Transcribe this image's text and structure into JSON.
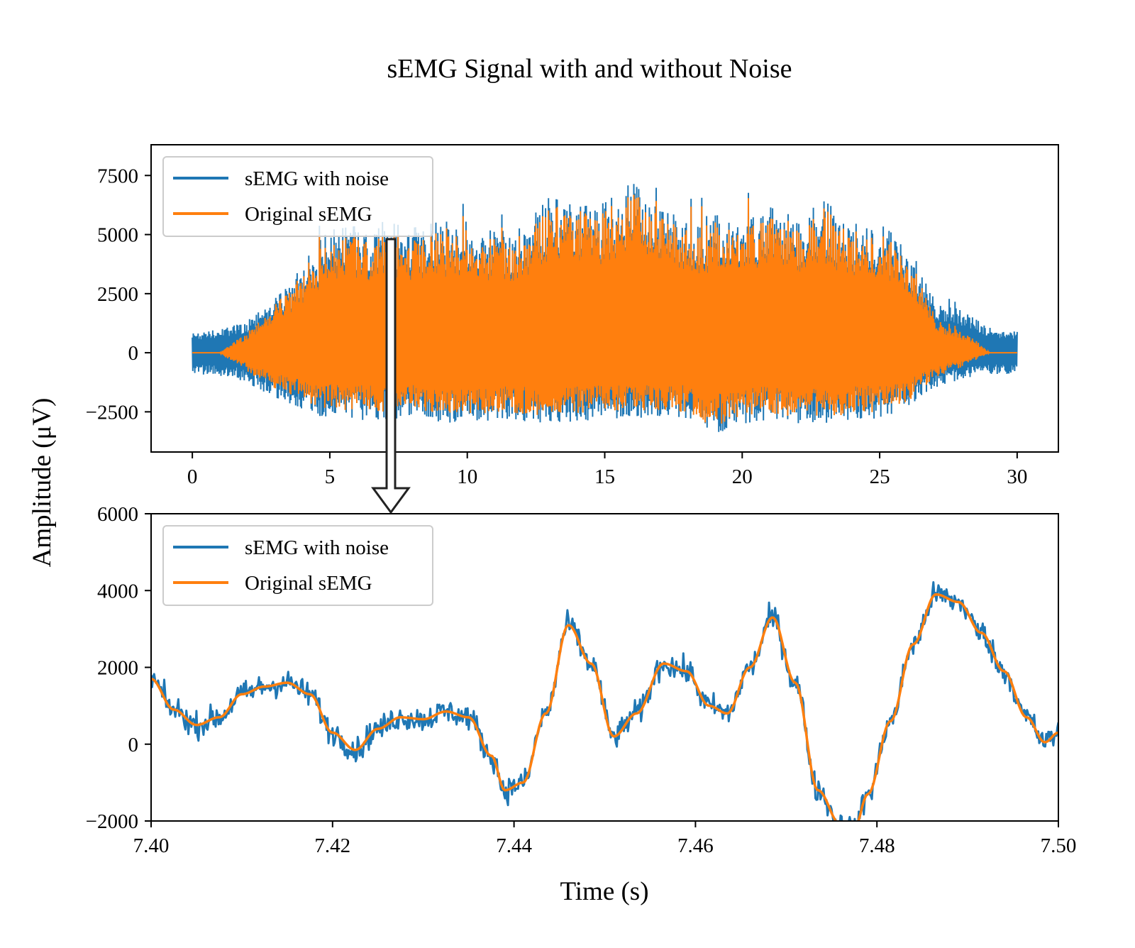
{
  "title": "sEMG Signal with and without Noise",
  "ylabel": "Amplitude (μV)",
  "xlabel": "Time (s)",
  "colors": {
    "noisy": "#1f77b4",
    "original": "#ff7f0e"
  },
  "chart_data": [
    {
      "type": "line",
      "panel": "overview",
      "xlim": [
        -1.5,
        31.5
      ],
      "ylim": [
        -4200,
        8800
      ],
      "xticks": [
        0,
        5,
        10,
        15,
        20,
        25,
        30
      ],
      "yticks": [
        -2500,
        0,
        2500,
        5000,
        7500
      ],
      "xtick_labels": [
        "0",
        "5",
        "10",
        "15",
        "20",
        "25",
        "30"
      ],
      "ytick_labels": [
        "−2500",
        "0",
        "2500",
        "5000",
        "7500"
      ],
      "legend": {
        "position": "upper-left"
      },
      "series": [
        {
          "name": "sEMG with noise",
          "color": "#1f77b4",
          "envelope": {
            "x": [
              0,
              1,
              1.5,
              2,
              2.5,
              3,
              3.5,
              4,
              4.5,
              5,
              6,
              7,
              8,
              9,
              10,
              11,
              12,
              13,
              14,
              15,
              16,
              17,
              18,
              19,
              20,
              21,
              22,
              23,
              24,
              25,
              26,
              26.5,
              27,
              27.5,
              28,
              28.5,
              29,
              30
            ],
            "upper": [
              1000,
              1100,
              1300,
              1500,
              2200,
              2600,
              3200,
              4200,
              5200,
              5900,
              6100,
              6300,
              6000,
              6300,
              6300,
              5800,
              6000,
              7500,
              7000,
              7200,
              8200,
              6800,
              6500,
              6600,
              6700,
              7000,
              6500,
              7300,
              6200,
              6200,
              5200,
              4000,
              2500,
              2300,
              2000,
              1600,
              1200,
              1000
            ],
            "lower": [
              -900,
              -1000,
              -1100,
              -1300,
              -1600,
              -1900,
              -2200,
              -2500,
              -2700,
              -2800,
              -2900,
              -2800,
              -2800,
              -3000,
              -3100,
              -2800,
              -2900,
              -3000,
              -2900,
              -2800,
              -2800,
              -2800,
              -2800,
              -3500,
              -3000,
              -2900,
              -3000,
              -3000,
              -2900,
              -2800,
              -2400,
              -1900,
              -1500,
              -1300,
              -1100,
              -1000,
              -900,
              -900
            ]
          }
        },
        {
          "name": "Original sEMG",
          "color": "#ff7f0e",
          "envelope": {
            "x": [
              0,
              1,
              1.2,
              1.5,
              2,
              2.5,
              3,
              3.5,
              4,
              4.5,
              5,
              6,
              7,
              8,
              9,
              10,
              11,
              12,
              13,
              14,
              15,
              16,
              17,
              18,
              19,
              20,
              21,
              22,
              23,
              24,
              25,
              26,
              26.5,
              27,
              27.5,
              28,
              28.5,
              29,
              30
            ],
            "upper": [
              0,
              0,
              200,
              500,
              1000,
              1700,
              2300,
              3000,
              4000,
              5000,
              5200,
              5800,
              5800,
              5500,
              6000,
              6000,
              5500,
              5700,
              7200,
              6800,
              7000,
              8000,
              6500,
              6200,
              6300,
              6500,
              6800,
              6200,
              7000,
              6000,
              5800,
              4800,
              3500,
              1800,
              1300,
              1000,
              600,
              0,
              0
            ],
            "lower": [
              0,
              0,
              -200,
              -400,
              -800,
              -1200,
              -1500,
              -1800,
              -2100,
              -2300,
              -2400,
              -2500,
              -2500,
              -2400,
              -2600,
              -2700,
              -2500,
              -2600,
              -2700,
              -2600,
              -2500,
              -2500,
              -2500,
              -2500,
              -3200,
              -2700,
              -2600,
              -2700,
              -2700,
              -2600,
              -2500,
              -2100,
              -1600,
              -1100,
              -800,
              -600,
              -300,
              0,
              0
            ]
          }
        }
      ]
    },
    {
      "type": "line",
      "panel": "zoom",
      "xlim": [
        7.4,
        7.5
      ],
      "ylim": [
        -2000,
        6000
      ],
      "xticks": [
        7.4,
        7.42,
        7.44,
        7.46,
        7.48,
        7.5
      ],
      "yticks": [
        -2000,
        0,
        2000,
        4000,
        6000
      ],
      "xtick_labels": [
        "7.40",
        "7.42",
        "7.44",
        "7.46",
        "7.48",
        "7.50"
      ],
      "ytick_labels": [
        "−2000",
        "0",
        "2000",
        "4000",
        "6000"
      ],
      "legend": {
        "position": "upper-left"
      },
      "series": [
        {
          "name": "sEMG with noise",
          "color": "#1f77b4",
          "noise_amplitude": 300
        },
        {
          "name": "Original sEMG",
          "color": "#ff7f0e",
          "x": [
            7.4,
            7.4025,
            7.405,
            7.4075,
            7.41,
            7.4125,
            7.415,
            7.4175,
            7.42,
            7.4225,
            7.425,
            7.4275,
            7.43,
            7.4325,
            7.435,
            7.4375,
            7.439,
            7.441,
            7.4435,
            7.446,
            7.4485,
            7.451,
            7.4535,
            7.4565,
            7.459,
            7.4615,
            7.4635,
            7.466,
            7.4685,
            7.471,
            7.4735,
            7.476,
            7.4775,
            7.479,
            7.4815,
            7.484,
            7.4865,
            7.489,
            7.4915,
            7.494,
            7.4965,
            7.4985,
            7.5
          ],
          "y": [
            1700,
            900,
            500,
            700,
            1300,
            1500,
            1600,
            1300,
            300,
            -150,
            400,
            700,
            650,
            850,
            700,
            -300,
            -1200,
            -1000,
            800,
            3100,
            2100,
            200,
            800,
            2100,
            1900,
            1000,
            800,
            2000,
            3300,
            1600,
            -1200,
            -2100,
            -2200,
            -1300,
            600,
            2600,
            3900,
            3700,
            2900,
            1900,
            700,
            50,
            300
          ]
        }
      ]
    }
  ]
}
